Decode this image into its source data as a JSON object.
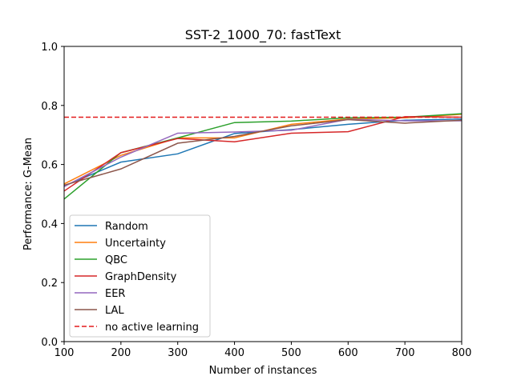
{
  "chart_data": {
    "type": "line",
    "title": "SST-2_1000_70: fastText",
    "xlabel": "Number of instances",
    "ylabel": "Performance: G-Mean",
    "xlim": [
      100,
      800
    ],
    "ylim": [
      0.0,
      1.0
    ],
    "xticks": [
      "100",
      "200",
      "300",
      "400",
      "500",
      "600",
      "700",
      "800"
    ],
    "yticks": [
      "0.0",
      "0.2",
      "0.4",
      "0.6",
      "0.8",
      "1.0"
    ],
    "legend_position": "lower-left",
    "grid": false,
    "x": [
      100,
      200,
      300,
      400,
      500,
      600,
      700,
      800
    ],
    "series": [
      {
        "name": "Random",
        "color": "#1f77b4",
        "style": "solid",
        "values": [
          0.527,
          0.608,
          0.636,
          0.705,
          0.718,
          0.736,
          0.75,
          0.754
        ]
      },
      {
        "name": "Uncertainty",
        "color": "#ff7f0e",
        "style": "solid",
        "values": [
          0.534,
          0.631,
          0.69,
          0.69,
          0.736,
          0.754,
          0.758,
          0.77
        ]
      },
      {
        "name": "QBC",
        "color": "#2ca02c",
        "style": "solid",
        "values": [
          0.483,
          0.64,
          0.69,
          0.742,
          0.747,
          0.758,
          0.76,
          0.772
        ]
      },
      {
        "name": "GraphDensity",
        "color": "#d62728",
        "style": "solid",
        "values": [
          0.51,
          0.64,
          0.688,
          0.677,
          0.706,
          0.711,
          0.762,
          0.76
        ]
      },
      {
        "name": "EER",
        "color": "#9467bd",
        "style": "solid",
        "values": [
          0.525,
          0.625,
          0.706,
          0.71,
          0.716,
          0.753,
          0.748,
          0.748
        ]
      },
      {
        "name": "LAL",
        "color": "#8c564b",
        "style": "solid",
        "values": [
          0.53,
          0.585,
          0.672,
          0.695,
          0.731,
          0.752,
          0.74,
          0.75
        ]
      },
      {
        "name": "no active learning",
        "color": "#e31a1c",
        "style": "dashed",
        "values": [
          0.76,
          0.76,
          0.76,
          0.76,
          0.76,
          0.76,
          0.76,
          0.76
        ]
      }
    ]
  }
}
